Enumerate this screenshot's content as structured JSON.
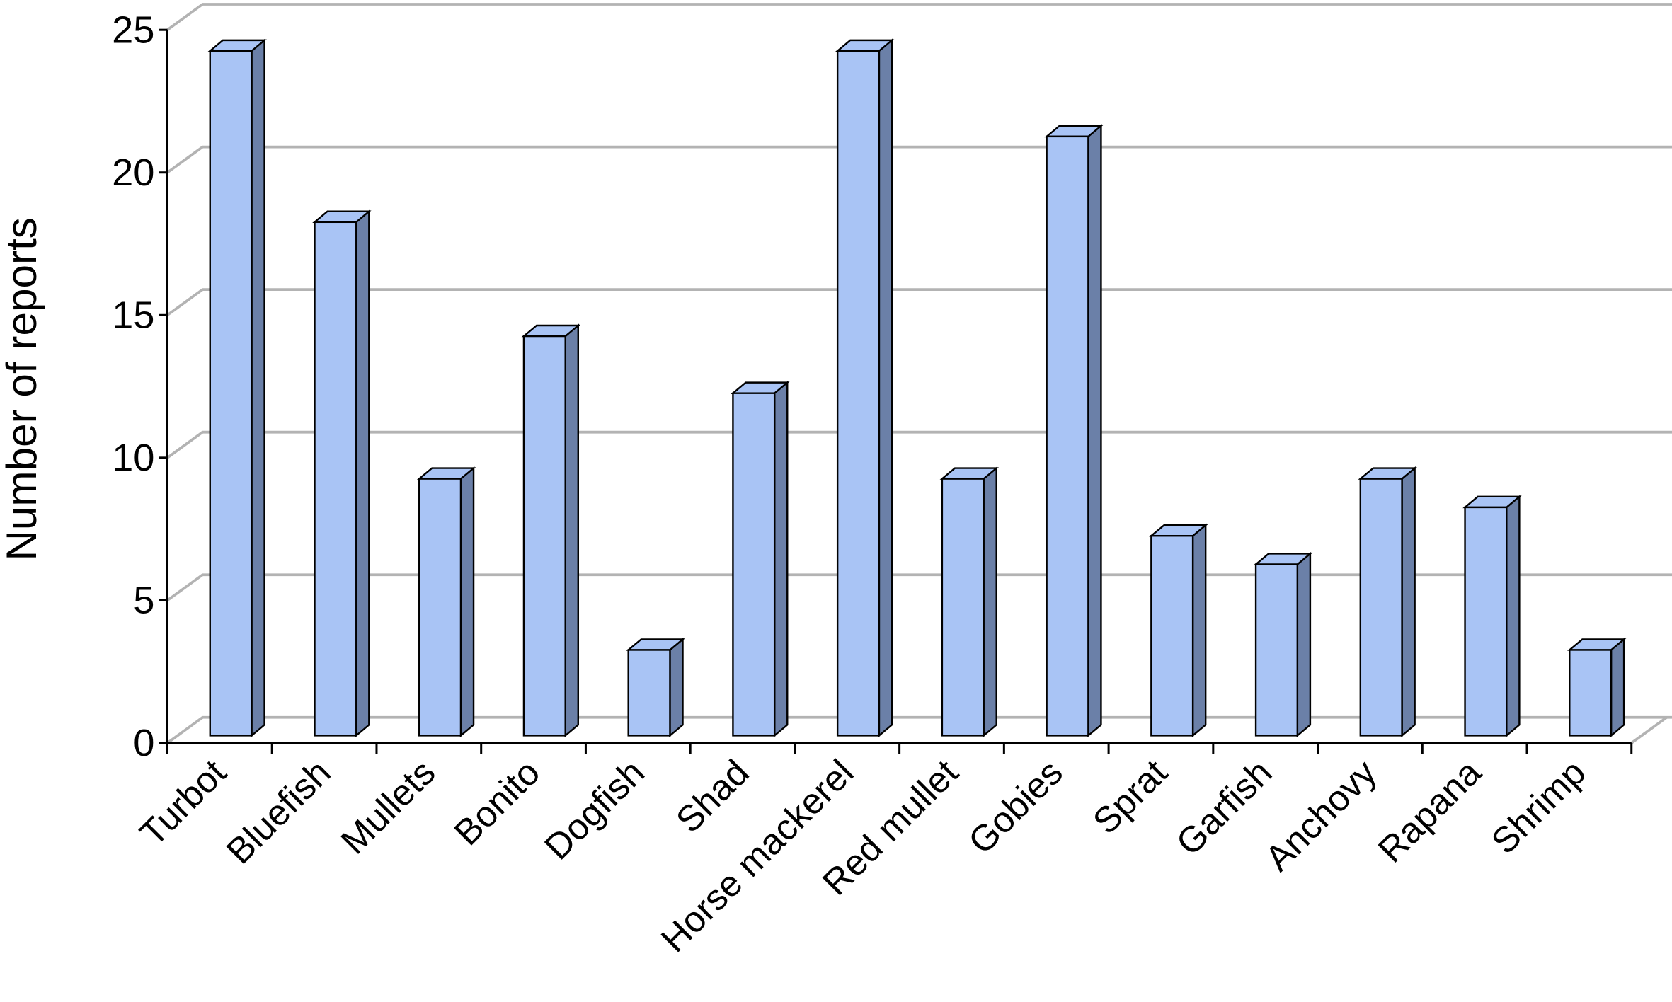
{
  "chart_data": {
    "type": "bar",
    "y_label": "Number of reports",
    "categories": [
      "Turbot",
      "Bluefish",
      "Mullets",
      "Bonito",
      "Dogfish",
      "Shad",
      "Horse mackerel",
      "Red mullet",
      "Gobies",
      "Sprat",
      "Garfish",
      "Anchovy",
      "Rapana",
      "Shrimp"
    ],
    "values": [
      24,
      18,
      9,
      14,
      3,
      12,
      24,
      9,
      21,
      7,
      6,
      9,
      8,
      3
    ],
    "color": "#a9c4f5",
    "ylim": [
      0,
      25
    ],
    "yticks": [
      0,
      5,
      10,
      15,
      20,
      25
    ],
    "grid": true
  }
}
